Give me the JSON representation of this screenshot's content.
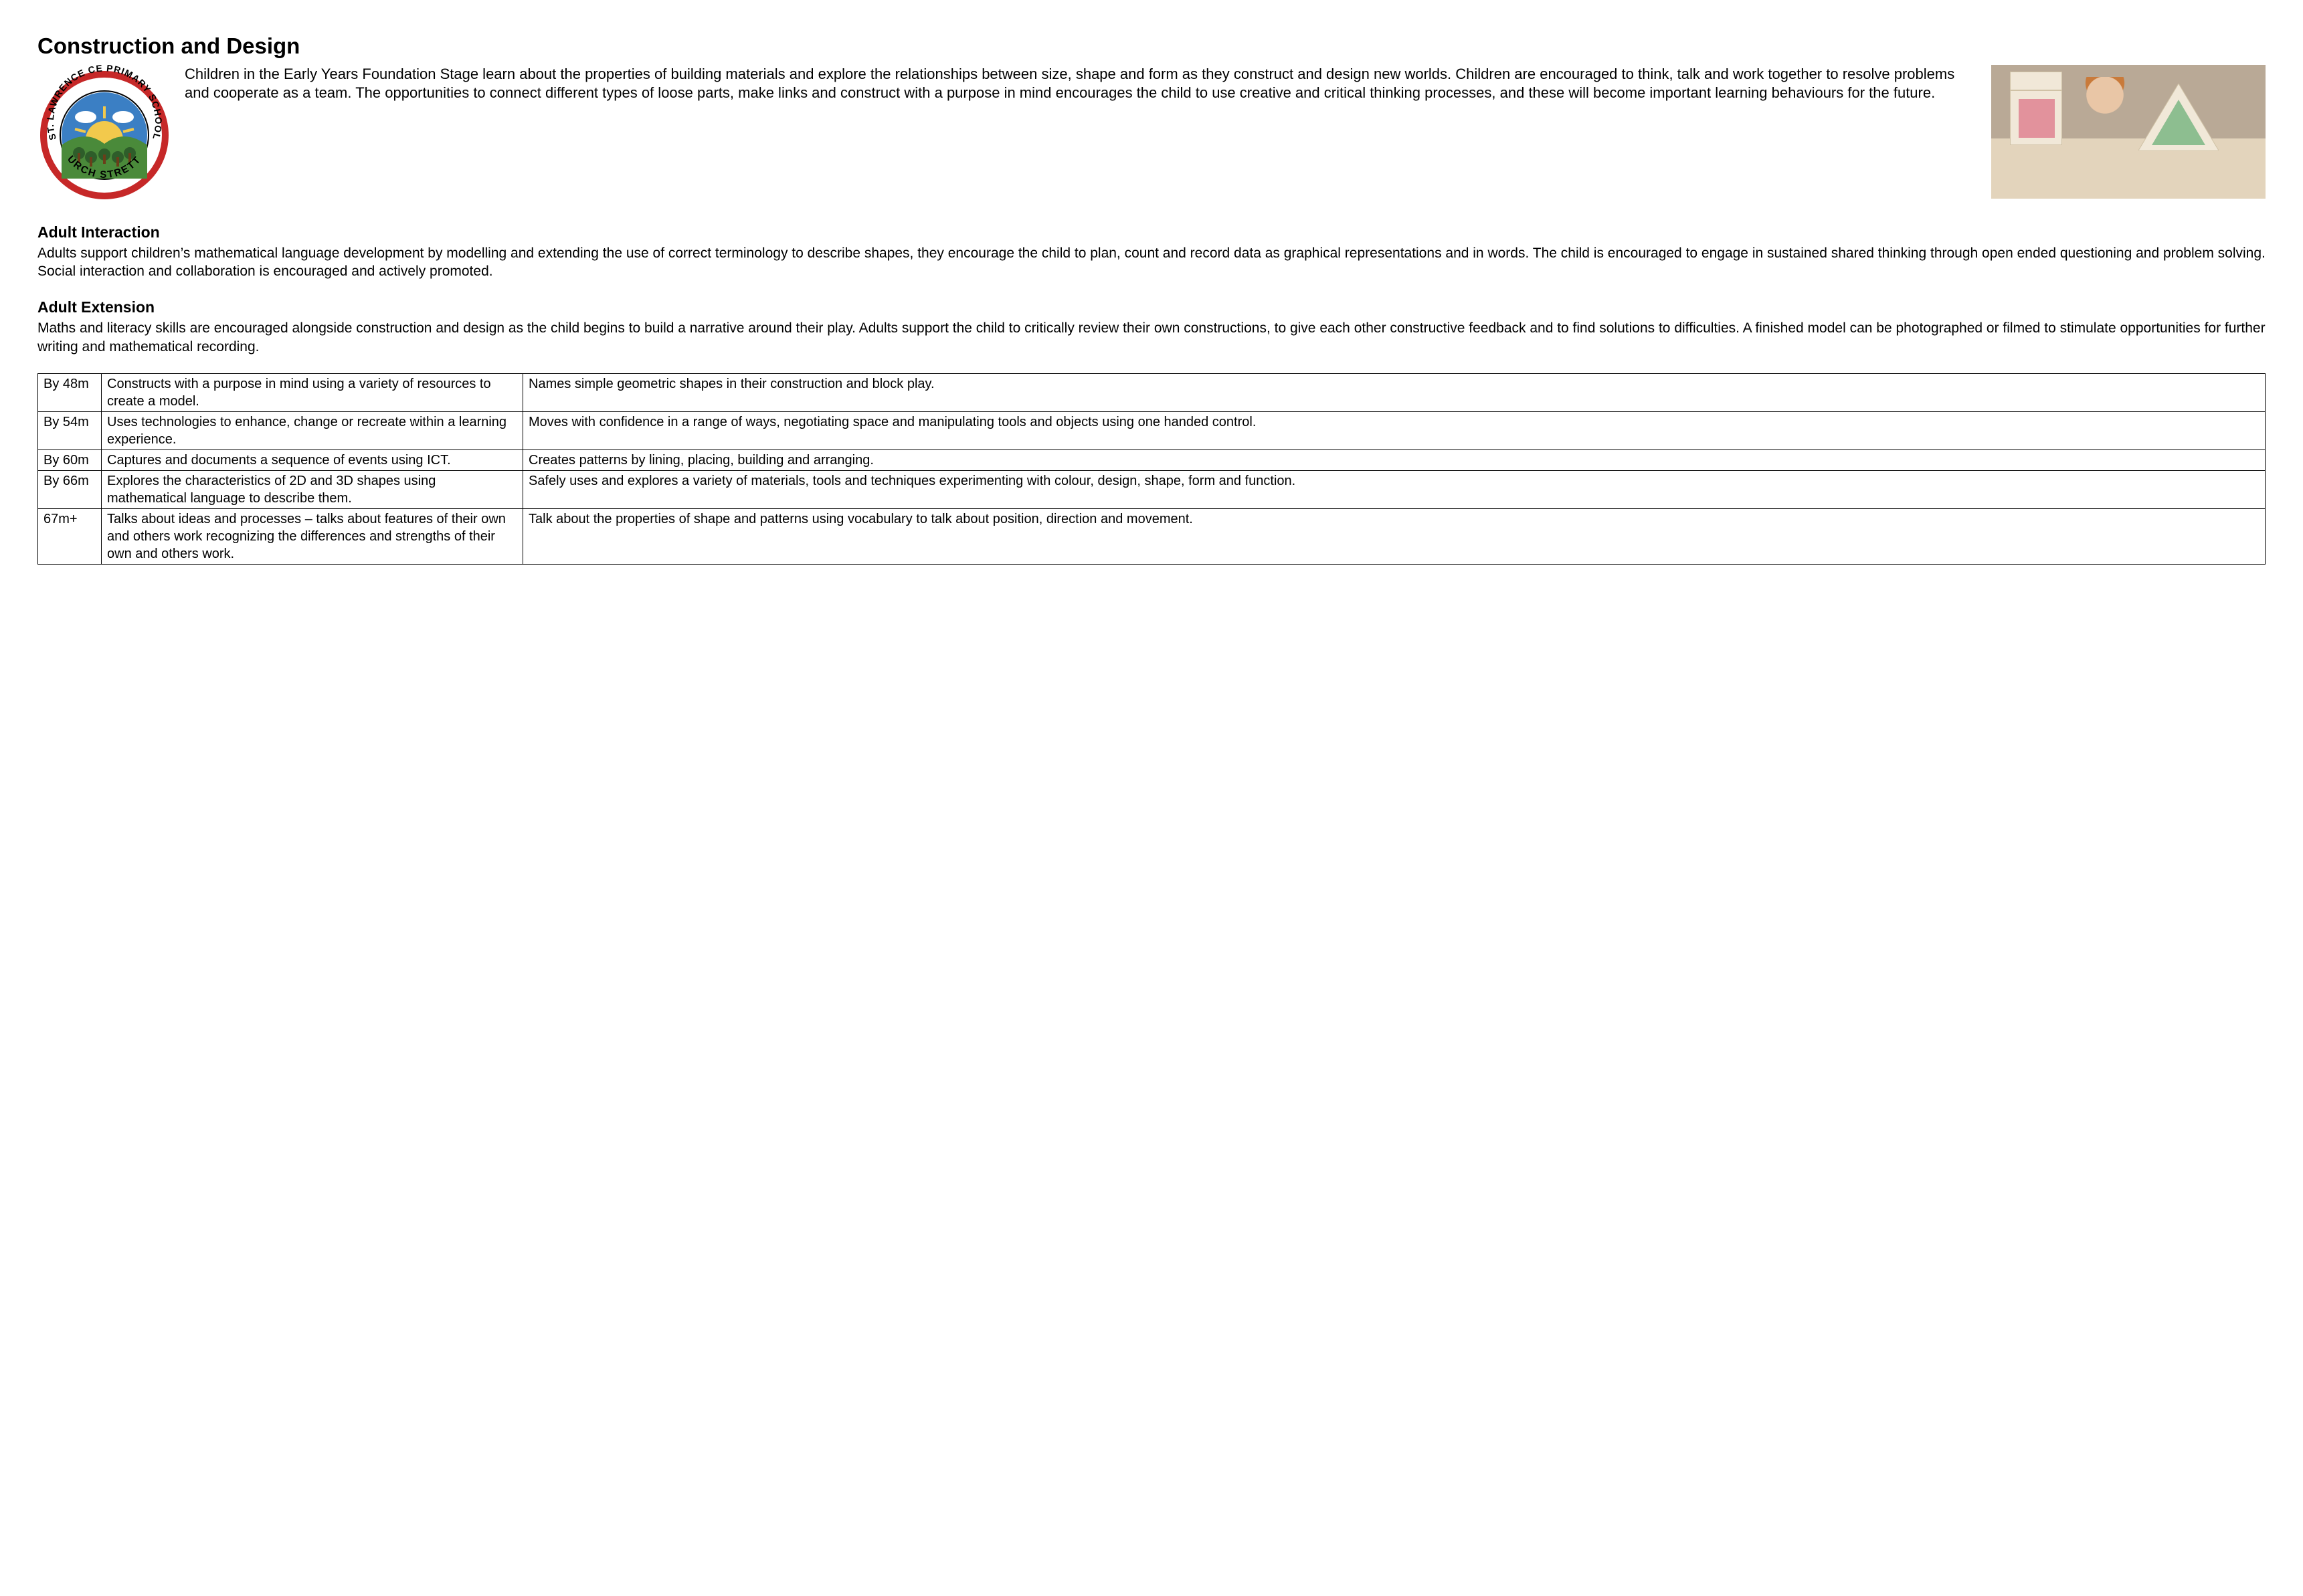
{
  "page_title": "Construction and Design",
  "logo": {
    "outer_text_top": "ST. LAWRENCE CE PRIMARY SCHOOL",
    "outer_text_bottom": "CHURCH STRETTON",
    "ring_color": "#c62828",
    "sky_color": "#3b7fc4",
    "sun_color": "#f2c94c",
    "hill_color": "#4a8a3a",
    "tree_color": "#2e5d2a",
    "cloud_color": "#ffffff"
  },
  "intro": "Children in the Early Years Foundation Stage learn about the properties of building materials and explore the relationships between size, shape and form as they construct and design new worlds. Children are encouraged to think, talk and work together to resolve problems and cooperate as a team. The opportunities to connect different types of loose parts, make links and construct with a purpose in mind encourages the child to use creative and critical thinking processes, and these will become important learning behaviours for the future.",
  "sections": {
    "adult_interaction": {
      "heading": "Adult Interaction",
      "body": "Adults support children’s mathematical language development by modelling and extending the use of correct terminology to describe shapes, they encourage the child to plan, count and record data as graphical representations and in words. The child is encouraged to engage in sustained shared thinking through open ended questioning and problem solving. Social interaction and collaboration is encouraged and actively promoted."
    },
    "adult_extension": {
      "heading": "Adult Extension",
      "body": "Maths and literacy skills are encouraged alongside construction and design as the child begins to build a narrative around their play. Adults support the child to critically review their own constructions, to give each other constructive feedback and to find solutions to difficulties. A finished model can be photographed or filmed to stimulate opportunities for further writing and mathematical recording."
    }
  },
  "table": {
    "rows": [
      {
        "age": "By 48m",
        "a": "Constructs with a purpose in mind using a variety of resources to create a model.",
        "b": "Names simple geometric shapes in their construction and block play."
      },
      {
        "age": "By 54m",
        "a": "Uses technologies to enhance, change or recreate within a learning experience.",
        "b": "Moves with confidence in a range of ways, negotiating space and manipulating tools and objects using one handed control."
      },
      {
        "age": "By 60m",
        "a": "Captures and documents a sequence of events using ICT.",
        "b": "Creates patterns by lining, placing, building and arranging."
      },
      {
        "age": "By 66m",
        "a": "Explores the characteristics of 2D and 3D shapes using mathematical language to describe them.",
        "b": "Safely uses and explores a variety of materials, tools and techniques experimenting with colour, design, shape, form and function."
      },
      {
        "age": "67m+",
        "a": "Talks about ideas and processes – talks about features of their own and others work recognizing the differences and strengths of their own and others work.",
        "b": "Talk about the properties of shape and patterns using vocabulary to talk about position, direction and movement."
      }
    ]
  },
  "side_image": {
    "bg_top": "#b9a996",
    "bg_bottom": "#e3d4bc",
    "block_color": "#f1e8d8",
    "accent1": "#d64a6c",
    "accent2": "#3a9b55"
  }
}
